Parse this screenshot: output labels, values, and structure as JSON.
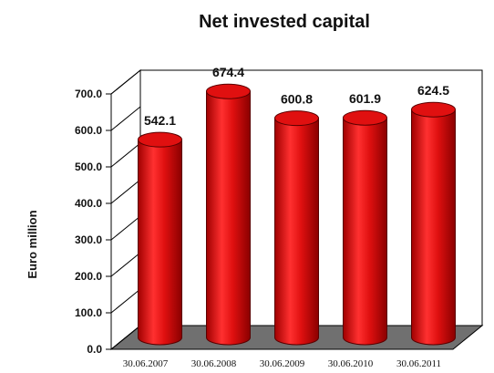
{
  "chart_data": {
    "type": "bar",
    "title": "Net invested capital",
    "ylabel": "Euro million",
    "xlabel": "",
    "categories": [
      "30.06.2007",
      "30.06.2008",
      "30.06.2009",
      "30.06.2010",
      "30.06.2011"
    ],
    "values": [
      542.1,
      674.4,
      600.8,
      601.9,
      624.5
    ],
    "value_labels": [
      "542.1",
      "674.4",
      "600.8",
      "601.9",
      "624.5"
    ],
    "y_ticks": [
      "0.0",
      "100.0",
      "200.0",
      "300.0",
      "400.0",
      "500.0",
      "600.0",
      "700.0"
    ],
    "ylim": [
      0,
      700
    ],
    "grid": false,
    "style": "3d-cylinder",
    "colors": {
      "bar": "#e01010",
      "bar_light": "#ff5a5a",
      "bar_dark": "#9a0000",
      "floor": "#707070",
      "wall": "#ffffff",
      "frame": "#000000"
    }
  }
}
